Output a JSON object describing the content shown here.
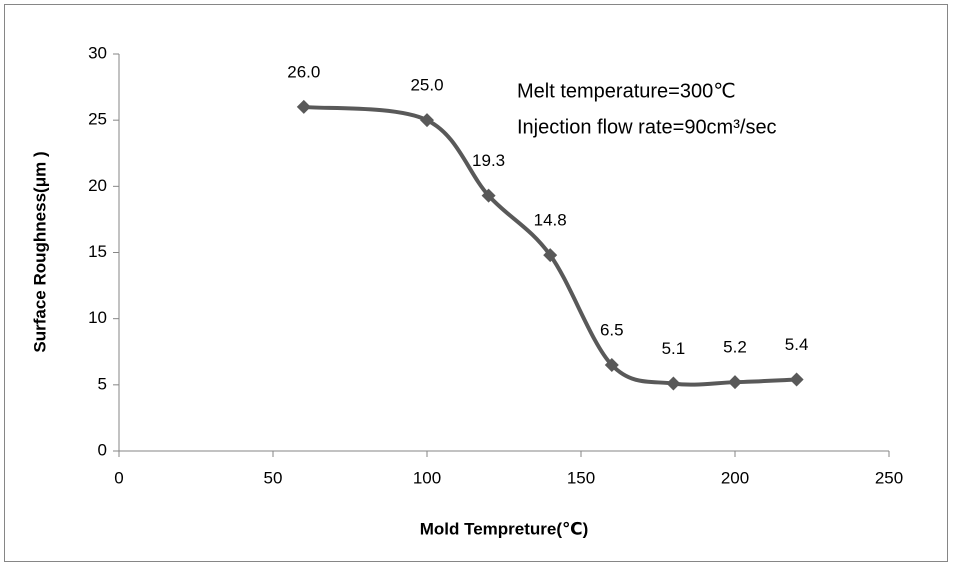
{
  "chart_data": {
    "type": "line",
    "x_label": "Mold Tempreture(℃)",
    "y_label": "Surface Roughness(μm )",
    "annotations": [
      "Melt temperature=300℃",
      "Injection flow rate=90cm³/sec"
    ],
    "x": [
      60,
      100,
      120,
      140,
      160,
      180,
      200,
      220
    ],
    "series": [
      {
        "name": "Surface Roughness",
        "color": "#595959",
        "values": [
          26.0,
          25.0,
          19.3,
          14.8,
          6.5,
          5.1,
          5.2,
          5.4
        ],
        "value_labels": [
          "26.0",
          "25.0",
          "19.3",
          "14.8",
          "6.5",
          "5.1",
          "5.2",
          "5.4"
        ]
      }
    ],
    "xlim": [
      0,
      250
    ],
    "xticks": [
      0,
      50,
      100,
      150,
      200,
      250
    ],
    "ylim": [
      0,
      30
    ],
    "yticks": [
      0,
      5,
      10,
      15,
      20,
      25,
      30
    ],
    "grid": false,
    "smooth": true,
    "marker": "diamond"
  }
}
